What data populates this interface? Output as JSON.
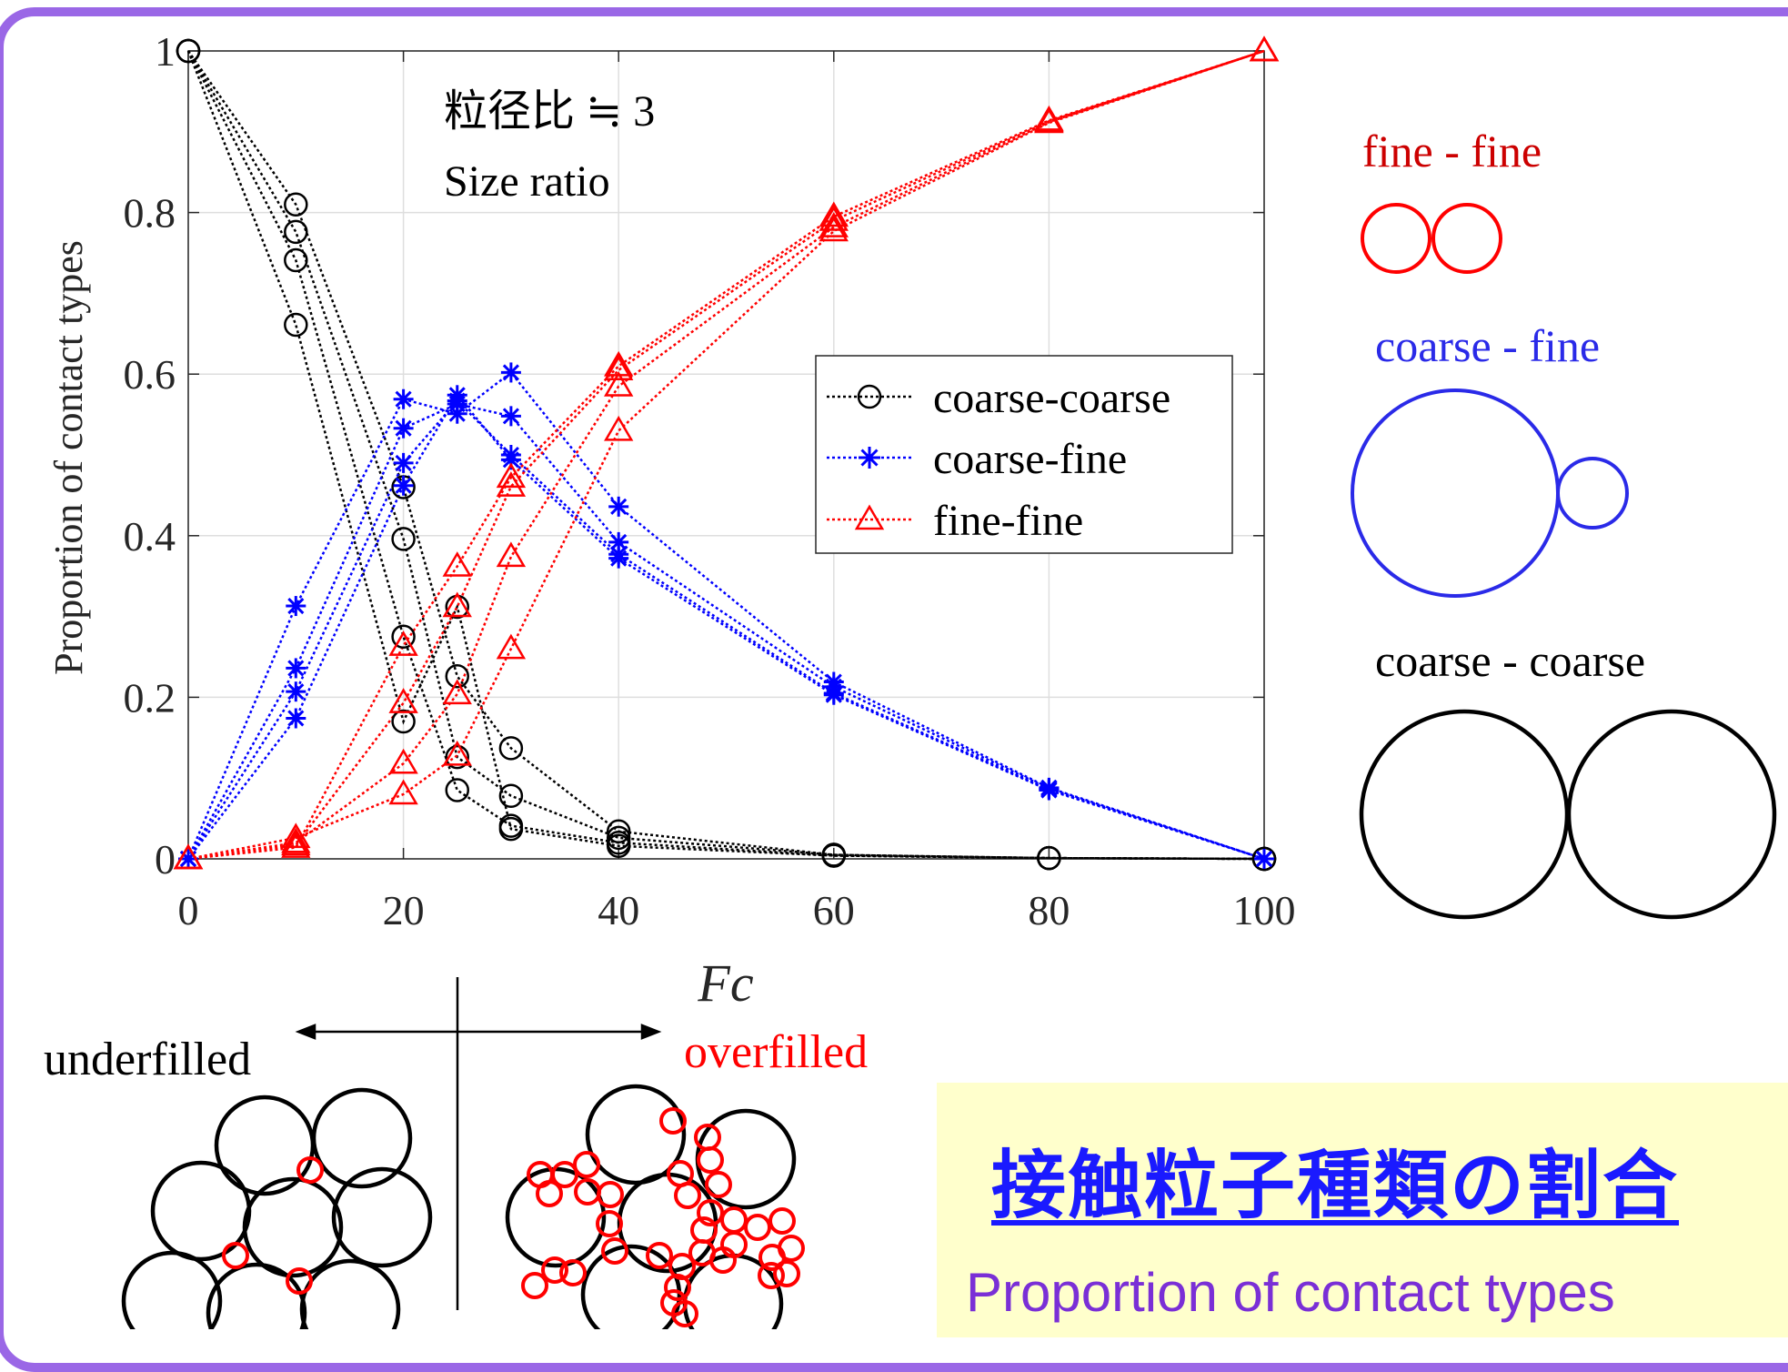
{
  "chart_data": {
    "type": "line",
    "ylabel": "Proportion of contact types",
    "xlabel": "Fc",
    "xlim": [
      0,
      100
    ],
    "ylim": [
      0,
      1
    ],
    "x_ticks": [
      "0",
      "20",
      "40",
      "60",
      "80",
      "100"
    ],
    "y_ticks": [
      "0",
      "0.2",
      "0.4",
      "0.6",
      "0.8",
      "1"
    ],
    "annotation_line1": "粒径比 ≒ 3",
    "annotation_line2": "Size ratio",
    "legend_position": "center-right",
    "grid": true,
    "series": [
      {
        "name": "coarse-coarse",
        "color": "#000000",
        "marker": "circle",
        "lines": [
          {
            "x": [
              0,
              10,
              20,
              25,
              30,
              40,
              60,
              80,
              100
            ],
            "y": [
              1,
              0.81,
              0.46,
              0.226,
              0.137,
              0.034,
              0.005,
              0.001,
              0
            ]
          },
          {
            "x": [
              0,
              10,
              20,
              25,
              30,
              40,
              60,
              80,
              100
            ],
            "y": [
              1,
              0.776,
              0.396,
              0.126,
              0.078,
              0.026,
              0.005,
              0.001,
              0
            ]
          },
          {
            "x": [
              0,
              10,
              20,
              25,
              30,
              40,
              60,
              80,
              100
            ],
            "y": [
              1,
              0.741,
              0.275,
              0.085,
              0.041,
              0.02,
              0.004,
              0.001,
              0
            ]
          },
          {
            "x": [
              0,
              10,
              20,
              25,
              30,
              40,
              60,
              80,
              100
            ],
            "y": [
              1,
              0.661,
              0.17,
              0.312,
              0.037,
              0.016,
              0.004,
              0.001,
              0
            ]
          }
        ]
      },
      {
        "name": "coarse-fine",
        "color": "#0000ff",
        "marker": "asterisk",
        "lines": [
          {
            "x": [
              0,
              10,
              20,
              25,
              30,
              40,
              60,
              80,
              100
            ],
            "y": [
              0,
              0.313,
              0.569,
              0.551,
              0.602,
              0.436,
              0.219,
              0.088,
              0
            ]
          },
          {
            "x": [
              0,
              10,
              20,
              25,
              30,
              40,
              60,
              80,
              100
            ],
            "y": [
              0,
              0.236,
              0.533,
              0.563,
              0.548,
              0.392,
              0.213,
              0.087,
              0
            ]
          },
          {
            "x": [
              0,
              10,
              20,
              25,
              30,
              40,
              60,
              80,
              100
            ],
            "y": [
              0,
              0.207,
              0.49,
              0.567,
              0.5,
              0.377,
              0.205,
              0.086,
              0
            ]
          },
          {
            "x": [
              0,
              10,
              20,
              25,
              30,
              40,
              60,
              80,
              100
            ],
            "y": [
              0,
              0.174,
              0.462,
              0.574,
              0.494,
              0.372,
              0.203,
              0.085,
              0
            ]
          }
        ]
      },
      {
        "name": "fine-fine",
        "color": "#ff0000",
        "marker": "triangle",
        "lines": [
          {
            "x": [
              0,
              10,
              20,
              25,
              30,
              40,
              60,
              80,
              100
            ],
            "y": [
              0,
              0.026,
              0.08,
              0.128,
              0.26,
              0.53,
              0.777,
              0.911,
              1
            ]
          },
          {
            "x": [
              0,
              10,
              20,
              25,
              30,
              40,
              60,
              80,
              100
            ],
            "y": [
              0,
              0.02,
              0.118,
              0.204,
              0.374,
              0.585,
              0.782,
              0.912,
              1
            ]
          },
          {
            "x": [
              0,
              10,
              20,
              25,
              30,
              40,
              60,
              80,
              100
            ],
            "y": [
              0,
              0.017,
              0.193,
              0.312,
              0.461,
              0.605,
              0.79,
              0.913,
              1
            ]
          },
          {
            "x": [
              0,
              10,
              20,
              25,
              30,
              40,
              60,
              80,
              100
            ],
            "y": [
              0,
              0.014,
              0.264,
              0.362,
              0.472,
              0.61,
              0.795,
              0.914,
              1
            ]
          }
        ]
      }
    ]
  },
  "diagram": {
    "fine_fine_label": "fine - fine",
    "coarse_fine_label": "coarse - fine",
    "coarse_coarse_label": "coarse - coarse",
    "underfilled_label": "underfilled",
    "overfilled_label": "overfilled",
    "fine_color": "#ff0000",
    "coarse_fine_color": "#2a2ae8",
    "coarse_color": "#000000"
  },
  "title_jp": "接触粒子種類の割合",
  "title_en": "Proportion of contact types"
}
